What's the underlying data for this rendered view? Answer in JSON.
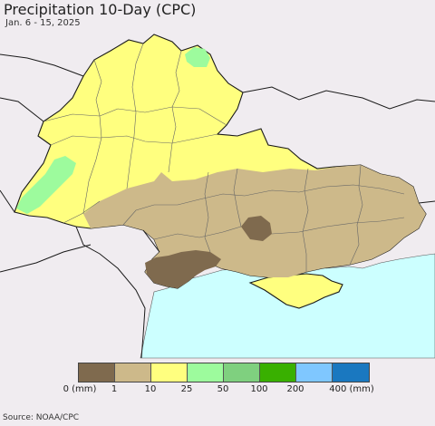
{
  "title": "Precipitation 10-Day (CPC)",
  "subtitle": "Jan. 6 - 15, 2025",
  "source": "Source: NOAA/CPC",
  "legend": {
    "colors": [
      "#7f6a4e",
      "#cdb98a",
      "#ffff7f",
      "#9dfb9d",
      "#7fd07f",
      "#39b000",
      "#7fc7ff",
      "#1a78c0"
    ],
    "labels": [
      "0 (mm)",
      "1",
      "10",
      "25",
      "50",
      "100",
      "200",
      "400 (mm)"
    ]
  },
  "map_colors": {
    "background": "#f0ecf0",
    "sea": "#ccffff",
    "border": "#1a1a1a"
  }
}
